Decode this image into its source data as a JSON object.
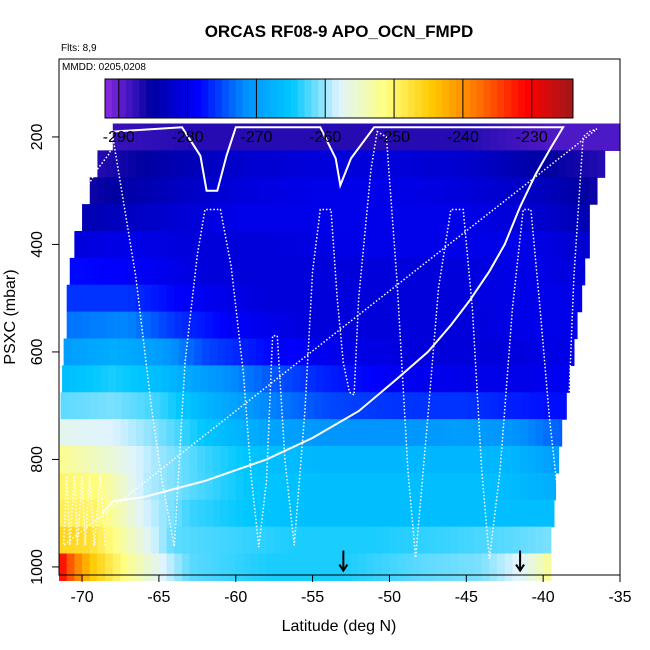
{
  "chart_data": {
    "type": "heatmap",
    "title": "ORCAS RF08-9 APO_OCN_FMPD",
    "subtitle_flights": "Flts: 8,9",
    "subtitle_dates": "MMDD: 0205,0208",
    "xlabel": "Latitude (deg N)",
    "ylabel": "PSXC (mbar)",
    "xlim": [
      -71.5,
      -35
    ],
    "ylim": [
      1015,
      55
    ],
    "y_reversed": true,
    "x_ticks": [
      -70,
      -65,
      -60,
      -55,
      -50,
      -45,
      -40,
      -35
    ],
    "x_tick_labels": [
      "-70",
      "-65",
      "-60",
      "-55",
      "-50",
      "-45",
      "-40",
      "-35"
    ],
    "y_ticks": [
      200,
      400,
      600,
      800,
      1000
    ],
    "y_tick_labels": [
      "200",
      "400",
      "600",
      "800",
      "1000"
    ],
    "colorbar": {
      "range": [
        -292,
        -224
      ],
      "ticks": [
        -290,
        -280,
        -270,
        -260,
        -250,
        -240,
        -230
      ],
      "tick_labels": [
        "-290",
        "-280",
        "-270",
        "-260",
        "-250",
        "-240",
        "-230"
      ],
      "colors": [
        "#8a2be2",
        "#0000a0",
        "#0000ff",
        "#0090ff",
        "#00c8ff",
        "#dff4ff",
        "#ffff80",
        "#ffc800",
        "#ff7000",
        "#ff0000",
        "#a01818"
      ]
    },
    "pressure_bands": [
      200,
      250,
      300,
      350,
      400,
      450,
      500,
      550,
      600,
      650,
      700,
      750,
      800,
      850,
      900,
      950,
      1000
    ],
    "cells": [
      {
        "p": 200,
        "lat_start": -68,
        "lat_end": -35,
        "values": [
          [
            -68,
            -288
          ],
          [
            -63,
            -287
          ],
          [
            -55,
            -287
          ],
          [
            -45,
            -287
          ],
          [
            -40,
            -289
          ],
          [
            -35,
            -289
          ]
        ]
      },
      {
        "p": 250,
        "lat_start": -69,
        "lat_end": -36,
        "values": [
          [
            -69,
            -287
          ],
          [
            -64,
            -284
          ],
          [
            -60,
            -282
          ],
          [
            -55,
            -281
          ],
          [
            -50,
            -281
          ],
          [
            -45,
            -282
          ],
          [
            -40,
            -285
          ],
          [
            -36,
            -287
          ]
        ]
      },
      {
        "p": 300,
        "lat_start": -69.5,
        "lat_end": -36.5,
        "values": [
          [
            -69.5,
            -286
          ],
          [
            -64,
            -283
          ],
          [
            -60,
            -281
          ],
          [
            -55,
            -280
          ],
          [
            -50,
            -280
          ],
          [
            -45,
            -281
          ],
          [
            -40,
            -283
          ],
          [
            -36.5,
            -286
          ]
        ]
      },
      {
        "p": 350,
        "lat_start": -70,
        "lat_end": -37,
        "values": [
          [
            -70,
            -284
          ],
          [
            -65,
            -282
          ],
          [
            -60,
            -280
          ],
          [
            -55,
            -280
          ],
          [
            -50,
            -280
          ],
          [
            -45,
            -280
          ],
          [
            -40,
            -282
          ],
          [
            -37,
            -284
          ]
        ]
      },
      {
        "p": 400,
        "lat_start": -70.5,
        "lat_end": -37,
        "values": [
          [
            -70.5,
            -281
          ],
          [
            -67,
            -280
          ],
          [
            -63,
            -281
          ],
          [
            -58,
            -281
          ],
          [
            -52,
            -280
          ],
          [
            -46,
            -280
          ],
          [
            -41,
            -280
          ],
          [
            -37,
            -282
          ]
        ]
      },
      {
        "p": 450,
        "lat_start": -70.8,
        "lat_end": -37.3,
        "values": [
          [
            -70.8,
            -278
          ],
          [
            -66,
            -279
          ],
          [
            -62,
            -281
          ],
          [
            -57,
            -281
          ],
          [
            -52,
            -281
          ],
          [
            -46,
            -281
          ],
          [
            -41,
            -280
          ],
          [
            -37.3,
            -281
          ]
        ]
      },
      {
        "p": 500,
        "lat_start": -71,
        "lat_end": -37.5,
        "values": [
          [
            -71,
            -276
          ],
          [
            -67,
            -276
          ],
          [
            -63,
            -279
          ],
          [
            -58,
            -281
          ],
          [
            -52,
            -281
          ],
          [
            -46,
            -281
          ],
          [
            -41,
            -280
          ],
          [
            -37.5,
            -280
          ]
        ]
      },
      {
        "p": 550,
        "lat_start": -71,
        "lat_end": -37.8,
        "values": [
          [
            -71,
            -273
          ],
          [
            -67,
            -272
          ],
          [
            -64,
            -276
          ],
          [
            -60,
            -279
          ],
          [
            -55,
            -281
          ],
          [
            -50,
            -281
          ],
          [
            -45,
            -281
          ],
          [
            -41,
            -280
          ],
          [
            -37.8,
            -280
          ]
        ]
      },
      {
        "p": 600,
        "lat_start": -71.2,
        "lat_end": -38,
        "values": [
          [
            -71.2,
            -270
          ],
          [
            -68,
            -268
          ],
          [
            -65,
            -270
          ],
          [
            -62,
            -275
          ],
          [
            -58,
            -278
          ],
          [
            -53,
            -280
          ],
          [
            -48,
            -281
          ],
          [
            -43,
            -281
          ],
          [
            -38,
            -280
          ]
        ]
      },
      {
        "p": 650,
        "lat_start": -71.3,
        "lat_end": -38.3,
        "values": [
          [
            -71.3,
            -266
          ],
          [
            -68,
            -264
          ],
          [
            -65,
            -266
          ],
          [
            -62,
            -270
          ],
          [
            -58,
            -274
          ],
          [
            -54,
            -277
          ],
          [
            -50,
            -279
          ],
          [
            -45,
            -280
          ],
          [
            -41,
            -280
          ],
          [
            -38.3,
            -279
          ]
        ]
      },
      {
        "p": 700,
        "lat_start": -71.4,
        "lat_end": -38.5,
        "values": [
          [
            -71.4,
            -262
          ],
          [
            -68,
            -261
          ],
          [
            -65,
            -263
          ],
          [
            -62,
            -267
          ],
          [
            -58,
            -272
          ],
          [
            -54,
            -275
          ],
          [
            -50,
            -276
          ],
          [
            -45,
            -276
          ],
          [
            -42,
            -277
          ],
          [
            -38.5,
            -278
          ]
        ]
      },
      {
        "p": 750,
        "lat_start": -71.5,
        "lat_end": -38.8,
        "values": [
          [
            -71.5,
            -257
          ],
          [
            -68,
            -258
          ],
          [
            -65,
            -261
          ],
          [
            -62,
            -265
          ],
          [
            -58,
            -269
          ],
          [
            -54,
            -271
          ],
          [
            -50,
            -271
          ],
          [
            -45,
            -270
          ],
          [
            -42,
            -271
          ],
          [
            -38.8,
            -274
          ]
        ]
      },
      {
        "p": 800,
        "lat_start": -71.5,
        "lat_end": -39,
        "values": [
          [
            -71.5,
            -252
          ],
          [
            -68,
            -256
          ],
          [
            -65,
            -260
          ],
          [
            -62,
            -263
          ],
          [
            -58,
            -266
          ],
          [
            -54,
            -267
          ],
          [
            -50,
            -267
          ],
          [
            -45,
            -267
          ],
          [
            -42,
            -267
          ],
          [
            -39,
            -270
          ]
        ]
      },
      {
        "p": 850,
        "lat_start": -71.5,
        "lat_end": -39.2,
        "values": [
          [
            -71.5,
            -250
          ],
          [
            -69,
            -251
          ],
          [
            -66,
            -259
          ],
          [
            -63,
            -262
          ],
          [
            -59,
            -265
          ],
          [
            -55,
            -266
          ],
          [
            -50,
            -266
          ],
          [
            -46,
            -266
          ],
          [
            -43,
            -266
          ],
          [
            -39.2,
            -268
          ]
        ]
      },
      {
        "p": 900,
        "lat_start": -71.5,
        "lat_end": -39.3,
        "values": [
          [
            -71.5,
            -249
          ],
          [
            -69,
            -250
          ],
          [
            -66,
            -258
          ],
          [
            -63,
            -263
          ],
          [
            -59,
            -265
          ],
          [
            -55,
            -266
          ],
          [
            -50,
            -266
          ],
          [
            -46,
            -266
          ],
          [
            -43,
            -266
          ],
          [
            -39.3,
            -266
          ]
        ]
      },
      {
        "p": 950,
        "lat_start": -71.5,
        "lat_end": -39.5,
        "values": [
          [
            -71.5,
            -246
          ],
          [
            -69.5,
            -247
          ],
          [
            -67,
            -254
          ],
          [
            -64,
            -262
          ],
          [
            -60,
            -263
          ],
          [
            -56,
            -264
          ],
          [
            -51,
            -264
          ],
          [
            -46,
            -263
          ],
          [
            -42,
            -262
          ],
          [
            -39.5,
            -261
          ]
        ]
      },
      {
        "p": 1000,
        "lat_start": -71.5,
        "lat_end": -39.5,
        "values": [
          [
            -71.5,
            -230
          ],
          [
            -70.5,
            -238
          ],
          [
            -69.5,
            -244
          ],
          [
            -68,
            -249
          ],
          [
            -66,
            -255
          ],
          [
            -63,
            -262
          ],
          [
            -58,
            -264
          ],
          [
            -53,
            -264
          ],
          [
            -48,
            -262
          ],
          [
            -44,
            -261
          ],
          [
            -41,
            -257
          ],
          [
            -39.5,
            -252
          ]
        ]
      }
    ],
    "flight_track_solid": [
      [
        -68,
        190
      ],
      [
        -63.5,
        182
      ],
      [
        -62.3,
        235
      ],
      [
        -61.9,
        300
      ],
      [
        -61.2,
        300
      ],
      [
        -60.6,
        235
      ],
      [
        -60,
        182
      ],
      [
        -54.5,
        182
      ],
      [
        -53.5,
        240
      ],
      [
        -53.2,
        290
      ],
      [
        -52.5,
        240
      ],
      [
        -51,
        182
      ],
      [
        -38.7,
        182
      ],
      [
        -39.5,
        220
      ],
      [
        -40.5,
        270
      ],
      [
        -41.5,
        330
      ],
      [
        -42.5,
        400
      ],
      [
        -43.5,
        450
      ],
      [
        -44.8,
        505
      ],
      [
        -46,
        550
      ],
      [
        -47.5,
        600
      ],
      [
        -49.5,
        650
      ],
      [
        -52,
        710
      ],
      [
        -55,
        760
      ],
      [
        -58,
        800
      ],
      [
        -62,
        840
      ],
      [
        -66,
        870
      ],
      [
        -68,
        878
      ],
      [
        -68.7,
        900
      ]
    ],
    "flight_track_dotted": [
      [
        -70.5,
        375
      ],
      [
        -69.8,
        300
      ],
      [
        -69,
        260
      ],
      [
        -68.2,
        230
      ],
      [
        -68,
        200
      ],
      [
        -66.5,
        460
      ],
      [
        -65.5,
        700
      ],
      [
        -64.8,
        840
      ],
      [
        -64,
        962
      ],
      [
        -63.3,
        620
      ],
      [
        -62.5,
        420
      ],
      [
        -62,
        335
      ],
      [
        -61,
        335
      ],
      [
        -60.3,
        440
      ],
      [
        -59.5,
        640
      ],
      [
        -59,
        830
      ],
      [
        -58.5,
        963
      ],
      [
        -58,
        840
      ],
      [
        -57.6,
        570
      ],
      [
        -57.3,
        570
      ],
      [
        -56.8,
        800
      ],
      [
        -56.2,
        960
      ],
      [
        -55.5,
        710
      ],
      [
        -55,
        450
      ],
      [
        -54.5,
        335
      ],
      [
        -53.8,
        335
      ],
      [
        -53.4,
        500
      ],
      [
        -53,
        620
      ],
      [
        -52.6,
        675
      ],
      [
        -52.3,
        680
      ],
      [
        -52,
        500
      ],
      [
        -51.2,
        260
      ],
      [
        -50.8,
        190
      ],
      [
        -50.2,
        200
      ],
      [
        -49.5,
        470
      ],
      [
        -48.8,
        820
      ],
      [
        -48.3,
        983
      ],
      [
        -47.5,
        720
      ],
      [
        -46.8,
        480
      ],
      [
        -46,
        335
      ],
      [
        -45.2,
        335
      ],
      [
        -44.6,
        520
      ],
      [
        -44,
        820
      ],
      [
        -43.5,
        985
      ],
      [
        -42.8,
        820
      ],
      [
        -42,
        520
      ],
      [
        -41.3,
        335
      ],
      [
        -40.8,
        335
      ],
      [
        -40.2,
        520
      ],
      [
        -39.6,
        720
      ],
      [
        -39,
        875
      ],
      [
        -38.6,
        880
      ],
      [
        -38,
        460
      ],
      [
        -37.4,
        200
      ],
      [
        -37,
        190
      ],
      [
        -36.5,
        185
      ],
      [
        -71.2,
        960
      ],
      [
        -71,
        830
      ],
      [
        -70.8,
        960
      ],
      [
        -70.5,
        830
      ],
      [
        -70.3,
        960
      ],
      [
        -70,
        830
      ],
      [
        -69.8,
        960
      ],
      [
        -69.5,
        830
      ],
      [
        -69.2,
        960
      ],
      [
        -68.8,
        830
      ],
      [
        -68.5,
        960
      ]
    ],
    "arrows": [
      {
        "lat": -53.0,
        "p": 990
      },
      {
        "lat": -41.5,
        "p": 990
      }
    ]
  }
}
